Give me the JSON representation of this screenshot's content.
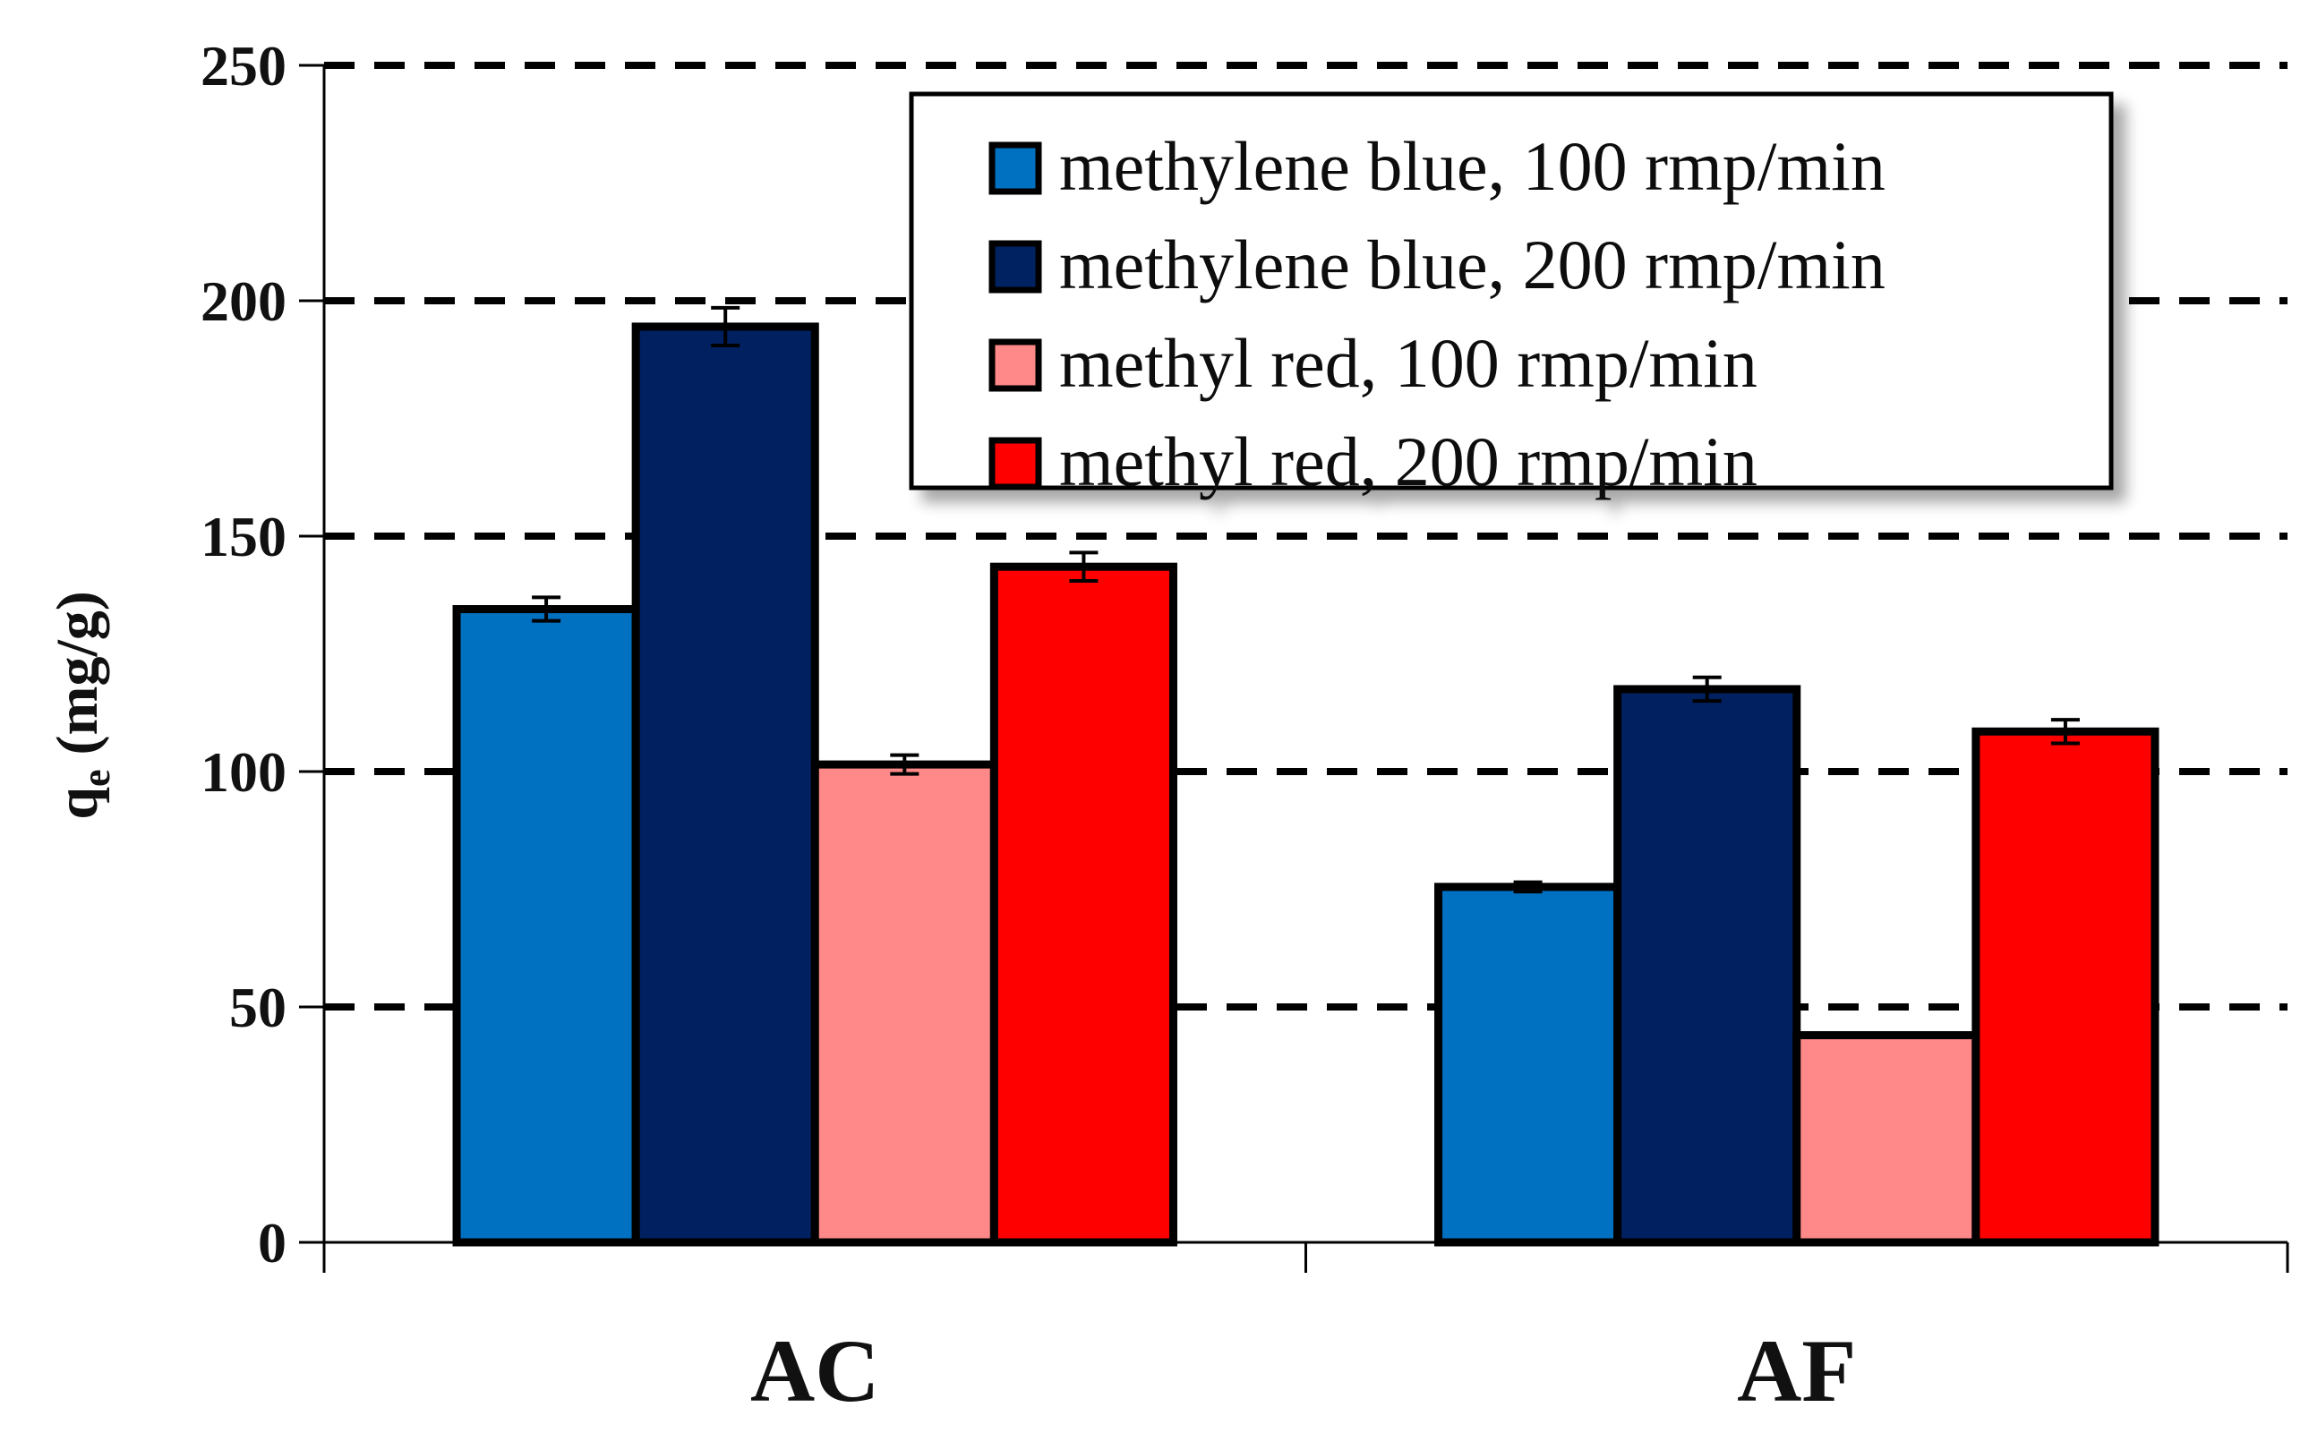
{
  "chart_data": {
    "type": "bar",
    "categories": [
      "AC",
      "AF"
    ],
    "series": [
      {
        "name": "methylene blue, 100 rmp/min",
        "color": "#0070C0",
        "values": [
          134.5,
          75.5
        ],
        "errors": [
          2.5,
          1.0
        ]
      },
      {
        "name": "methylene blue, 200 rmp/min",
        "color": "#002060",
        "values": [
          194.5,
          117.5
        ],
        "errors": [
          4.0,
          2.5
        ]
      },
      {
        "name": "methyl red, 100 rmp/min",
        "color": "#FF8888",
        "values": [
          101.5,
          44.0
        ],
        "errors": [
          2.0,
          0
        ]
      },
      {
        "name": "methyl red, 200 rmp/min",
        "color": "#FF0000",
        "values": [
          143.5,
          108.5
        ],
        "errors": [
          3.0,
          2.5
        ]
      }
    ],
    "ylabel_main": "q",
    "ylabel_sub": "e",
    "ylabel_unit": "(mg/g)",
    "ylim": [
      0,
      250
    ],
    "yticks": [
      "0",
      "50",
      "100",
      "150",
      "200",
      "250"
    ],
    "grid": "dashed horizontal",
    "legend_position": "top-right"
  }
}
